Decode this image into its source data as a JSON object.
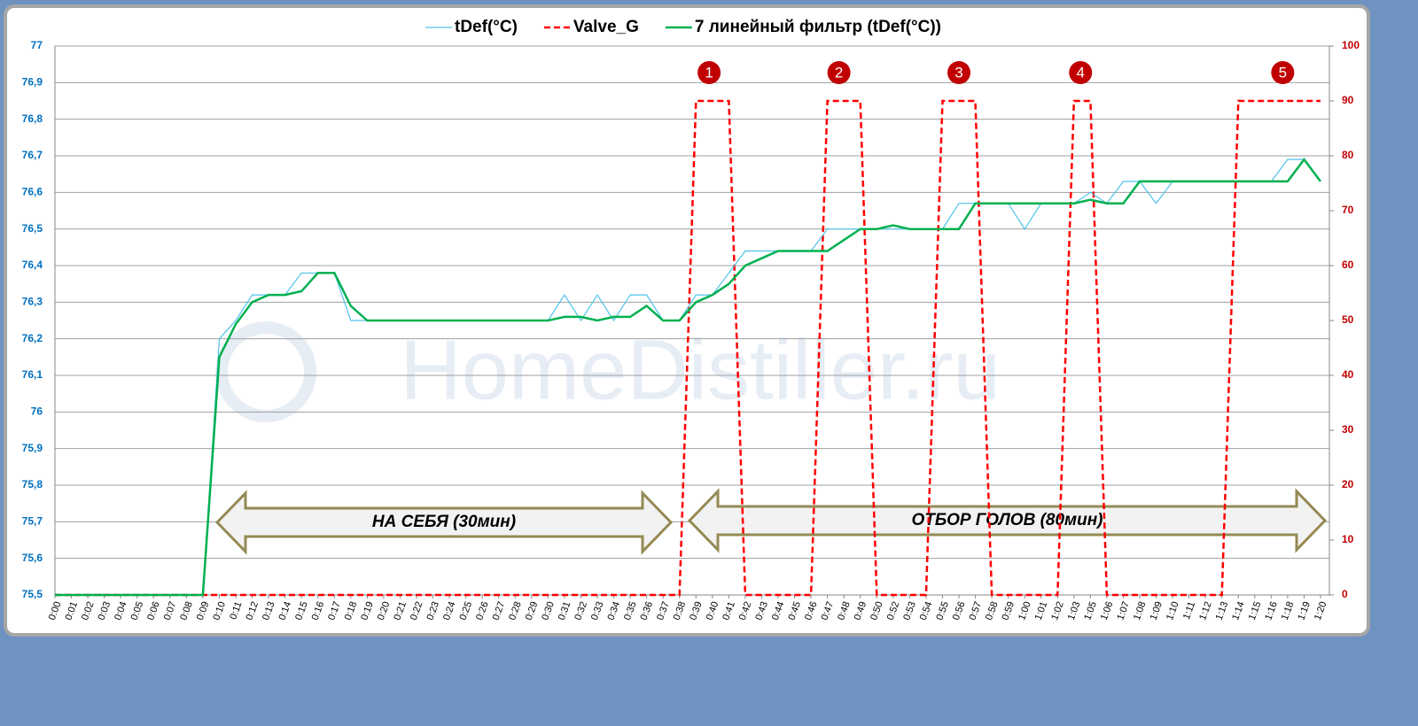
{
  "chart_data": {
    "type": "line",
    "categories": [
      "0:00",
      "0:01",
      "0:02",
      "0:03",
      "0:04",
      "0:05",
      "0:06",
      "0:07",
      "0:08",
      "0:09",
      "0:10",
      "0:11",
      "0:12",
      "0:13",
      "0:14",
      "0:15",
      "0:16",
      "0:17",
      "0:18",
      "0:19",
      "0:20",
      "0:21",
      "0:22",
      "0:23",
      "0:24",
      "0:25",
      "0:26",
      "0:27",
      "0:28",
      "0:29",
      "0:30",
      "0:31",
      "0:32",
      "0:33",
      "0:34",
      "0:35",
      "0:36",
      "0:37",
      "0:38",
      "0:39",
      "0:40",
      "0:41",
      "0:42",
      "0:43",
      "0:44",
      "0:45",
      "0:46",
      "0:47",
      "0:48",
      "0:49",
      "0:50",
      "0:52",
      "0:53",
      "0:54",
      "0:55",
      "0:56",
      "0:57",
      "0:58",
      "0:59",
      "1:00",
      "1:01",
      "1:02",
      "1:03",
      "1:05",
      "1:06",
      "1:07",
      "1:08",
      "1:09",
      "1:10",
      "1:11",
      "1:12",
      "1:13",
      "1:14",
      "1:15",
      "1:16",
      "1:18",
      "1:19",
      "1:20"
    ],
    "series": [
      {
        "name": "tDef(°C)",
        "color": "#4fc3ea",
        "values": [
          75.5,
          75.5,
          75.5,
          75.5,
          75.5,
          75.5,
          75.5,
          75.5,
          75.5,
          75.5,
          76.2,
          76.25,
          76.32,
          76.32,
          76.32,
          76.38,
          76.38,
          76.38,
          76.25,
          76.25,
          76.25,
          76.25,
          76.25,
          76.25,
          76.25,
          76.25,
          76.25,
          76.25,
          76.25,
          76.25,
          76.25,
          76.32,
          76.25,
          76.32,
          76.25,
          76.32,
          76.32,
          76.25,
          76.25,
          76.32,
          76.32,
          76.38,
          76.44,
          76.44,
          76.44,
          76.44,
          76.44,
          76.5,
          76.5,
          76.5,
          76.5,
          76.5,
          76.5,
          76.5,
          76.5,
          76.57,
          76.57,
          76.57,
          76.57,
          76.5,
          76.57,
          76.57,
          76.57,
          76.6,
          76.57,
          76.63,
          76.63,
          76.57,
          76.63,
          76.63,
          76.63,
          76.63,
          76.63,
          76.63,
          76.63,
          76.69,
          76.69,
          76.63
        ]
      },
      {
        "name": "Valve_G",
        "color": "#ff0000",
        "dashed": true,
        "axis": "y2",
        "values": [
          0,
          0,
          0,
          0,
          0,
          0,
          0,
          0,
          0,
          0,
          0,
          0,
          0,
          0,
          0,
          0,
          0,
          0,
          0,
          0,
          0,
          0,
          0,
          0,
          0,
          0,
          0,
          0,
          0,
          0,
          0,
          0,
          0,
          0,
          0,
          0,
          0,
          0,
          0,
          90,
          90,
          90,
          0,
          0,
          0,
          0,
          0,
          90,
          90,
          90,
          0,
          0,
          0,
          0,
          90,
          90,
          90,
          0,
          0,
          0,
          0,
          0,
          90,
          90,
          0,
          0,
          0,
          0,
          0,
          0,
          0,
          0,
          90,
          90,
          90,
          90,
          90,
          90
        ]
      },
      {
        "name": "7 линейный фильтр (tDef(°C))",
        "color": "#00b050",
        "values": [
          75.5,
          75.5,
          75.5,
          75.5,
          75.5,
          75.5,
          75.5,
          75.5,
          75.5,
          75.5,
          76.15,
          76.24,
          76.3,
          76.32,
          76.32,
          76.33,
          76.38,
          76.38,
          76.29,
          76.25,
          76.25,
          76.25,
          76.25,
          76.25,
          76.25,
          76.25,
          76.25,
          76.25,
          76.25,
          76.25,
          76.25,
          76.26,
          76.26,
          76.25,
          76.26,
          76.26,
          76.29,
          76.25,
          76.25,
          76.3,
          76.32,
          76.35,
          76.4,
          76.42,
          76.44,
          76.44,
          76.44,
          76.44,
          76.47,
          76.5,
          76.5,
          76.51,
          76.5,
          76.5,
          76.5,
          76.5,
          76.57,
          76.57,
          76.57,
          76.57,
          76.57,
          76.57,
          76.57,
          76.58,
          76.57,
          76.57,
          76.63,
          76.63,
          76.63,
          76.63,
          76.63,
          76.63,
          76.63,
          76.63,
          76.63,
          76.63,
          76.69,
          76.63
        ]
      }
    ],
    "ylim": [
      75.5,
      77
    ],
    "yticks": [
      {
        "value": 75.5,
        "label": "75,5"
      },
      {
        "value": 75.6,
        "label": "75,6"
      },
      {
        "value": 75.7,
        "label": "75,7"
      },
      {
        "value": 75.8,
        "label": "75,8"
      },
      {
        "value": 75.9,
        "label": "75,9"
      },
      76,
      {
        "value": 76.1,
        "label": "76,1"
      },
      {
        "value": 76.2,
        "label": "76,2"
      },
      {
        "value": 76.3,
        "label": "76,3"
      },
      {
        "value": 76.4,
        "label": "76,4"
      },
      {
        "value": 76.5,
        "label": "76,5"
      },
      {
        "value": 76.6,
        "label": "76,6"
      },
      {
        "value": 76.7,
        "label": "76,7"
      },
      {
        "value": 76.8,
        "label": "76,8"
      },
      {
        "value": 76.9,
        "label": "76,9"
      },
      77
    ],
    "y2lim": [
      0,
      100
    ],
    "y2ticks": [
      0,
      10,
      20,
      30,
      40,
      50,
      60,
      70,
      80,
      90,
      100
    ],
    "grid": true,
    "legend": "top",
    "markers": [
      "1",
      "2",
      "3",
      "4",
      "5"
    ],
    "arrows": [
      "НА СЕБЯ (30мин)",
      "ОТБОР ГОЛОВ (80мин)"
    ],
    "watermark": "HomeDistiller.ru"
  }
}
